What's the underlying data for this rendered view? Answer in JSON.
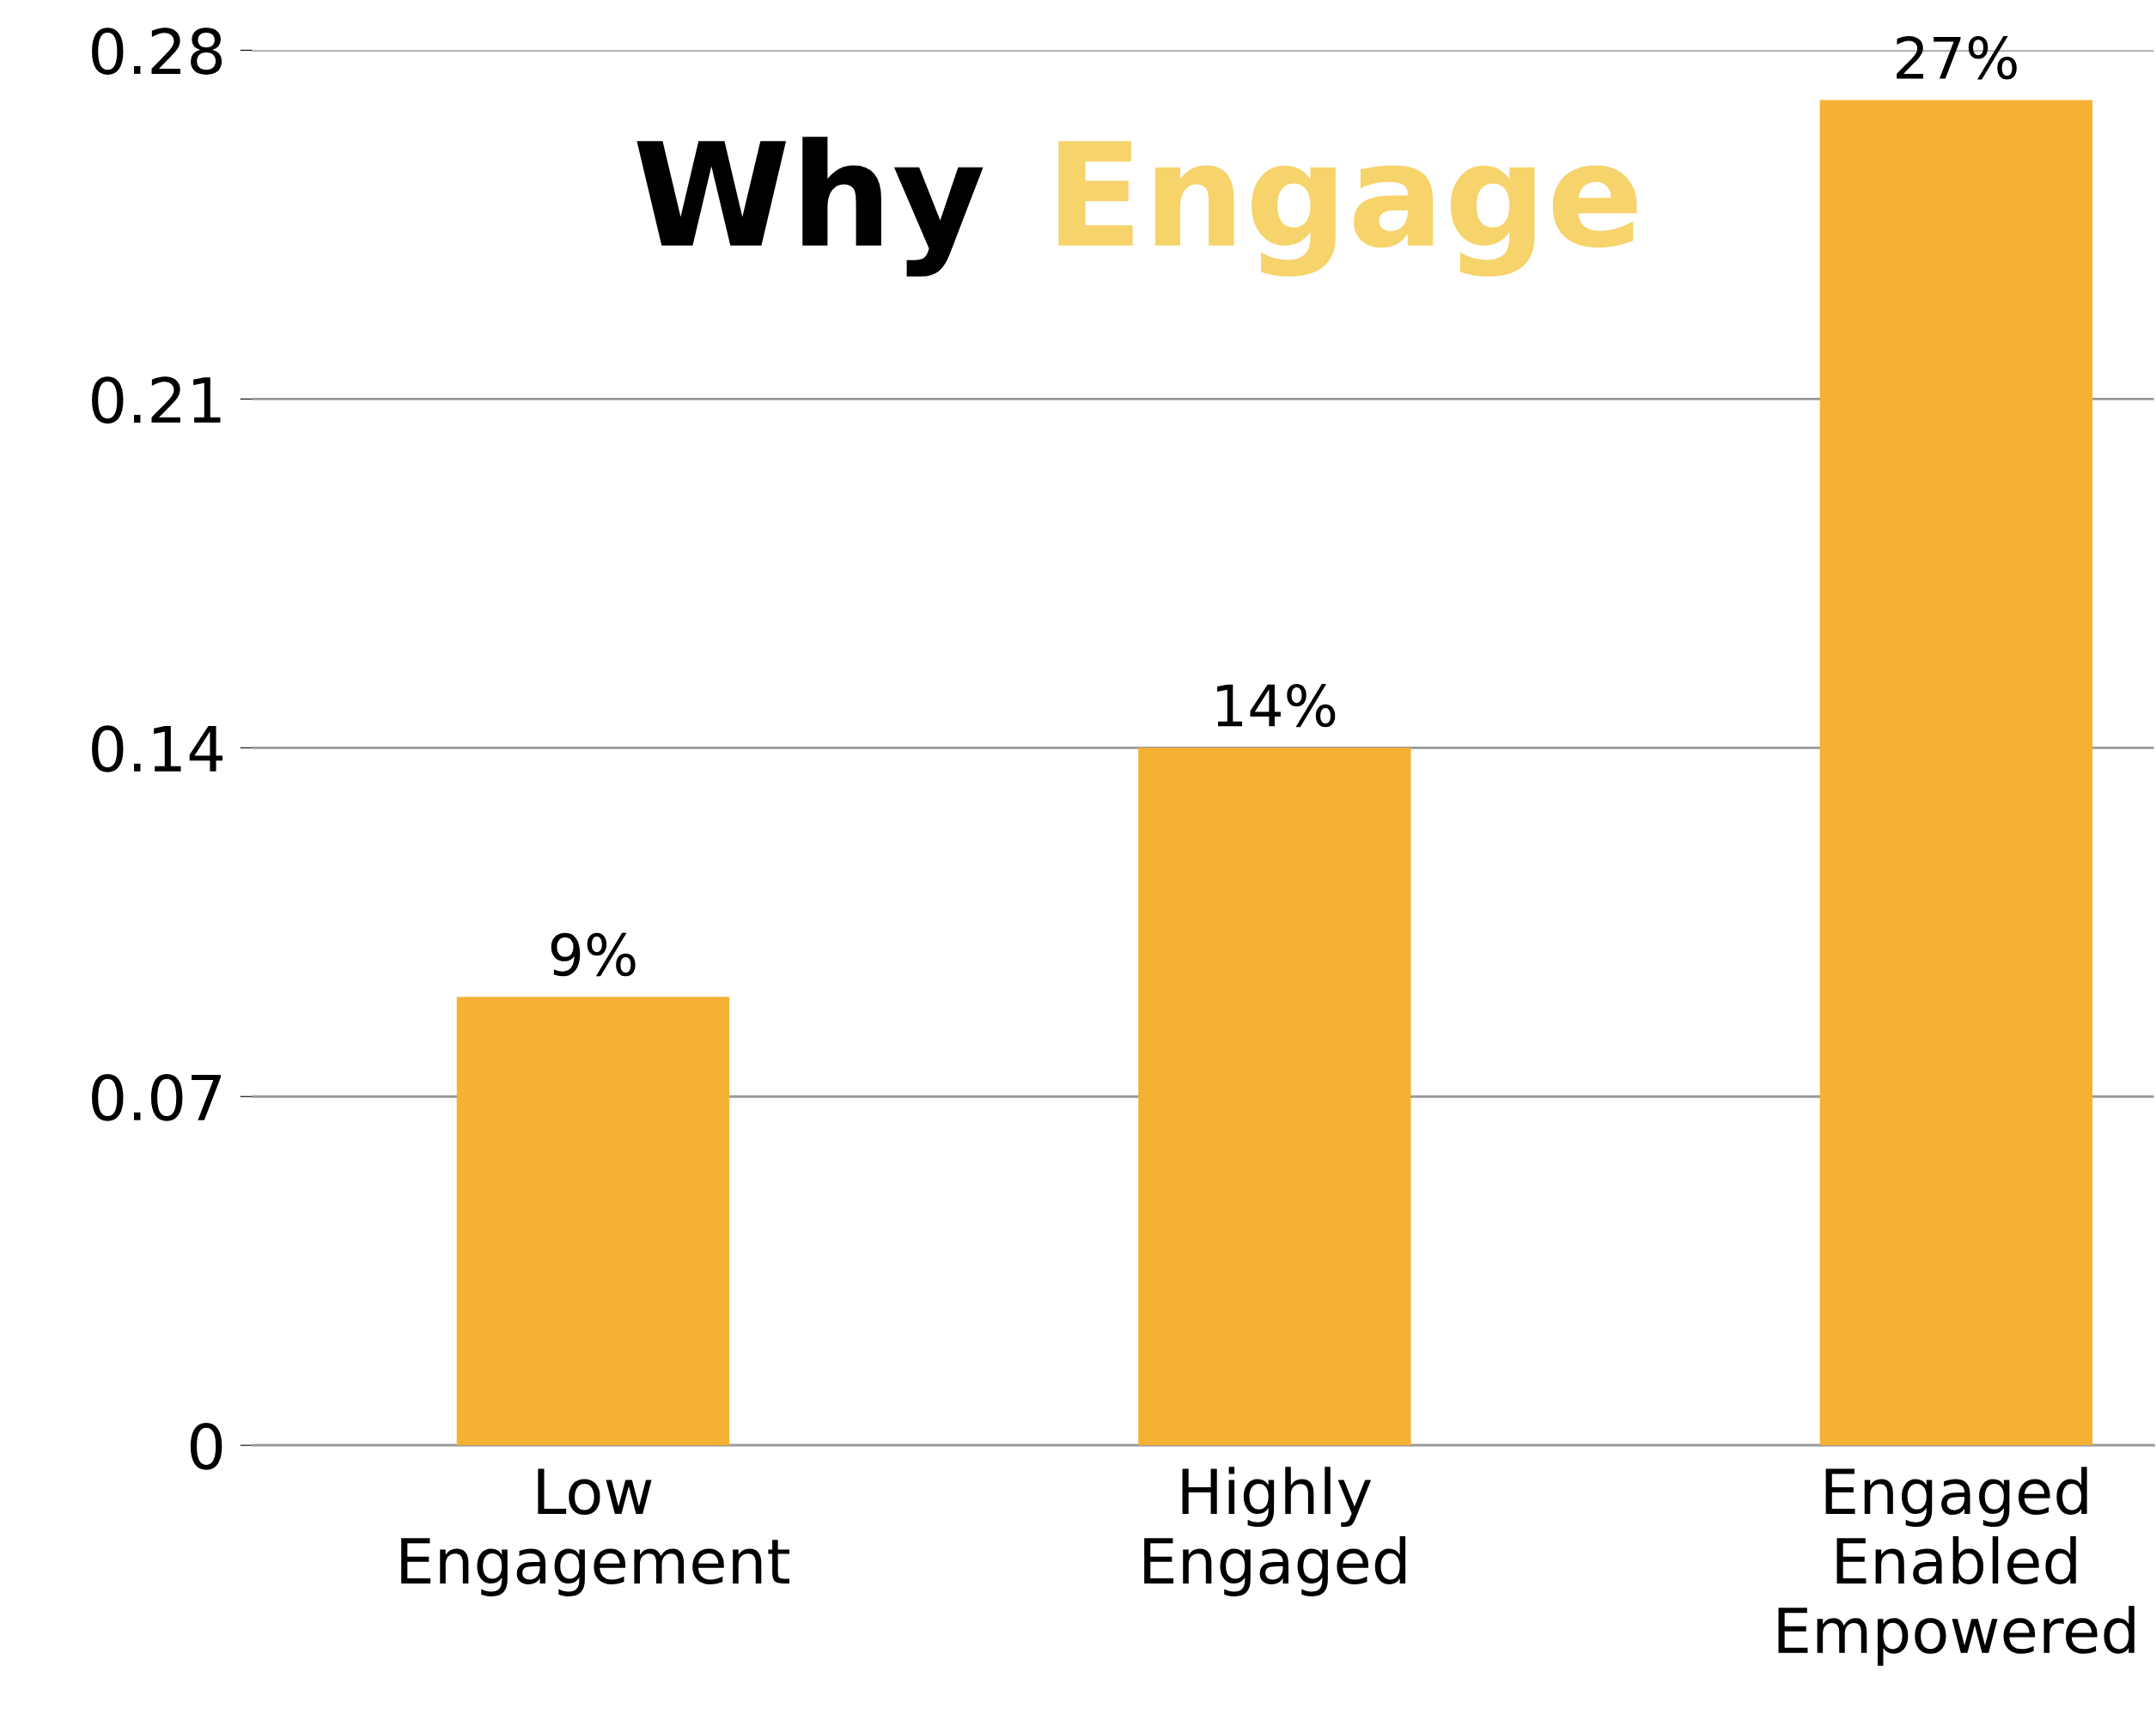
{
  "chart_data": {
    "type": "bar",
    "title": "Why Engage",
    "categories": [
      "Low\nEngagement",
      "Highly\nEngaged",
      "Engaged\nEnabled\nEmpowered"
    ],
    "values": [
      0.09,
      0.14,
      0.27
    ],
    "color": "#f5b133",
    "value_labels": [
      "9%",
      "14%",
      "27%"
    ],
    "ylim": [
      0,
      0.28
    ],
    "yticks": [
      0,
      0.07,
      0.14,
      0.21,
      0.28
    ],
    "grid": "y",
    "legend": false
  }
}
